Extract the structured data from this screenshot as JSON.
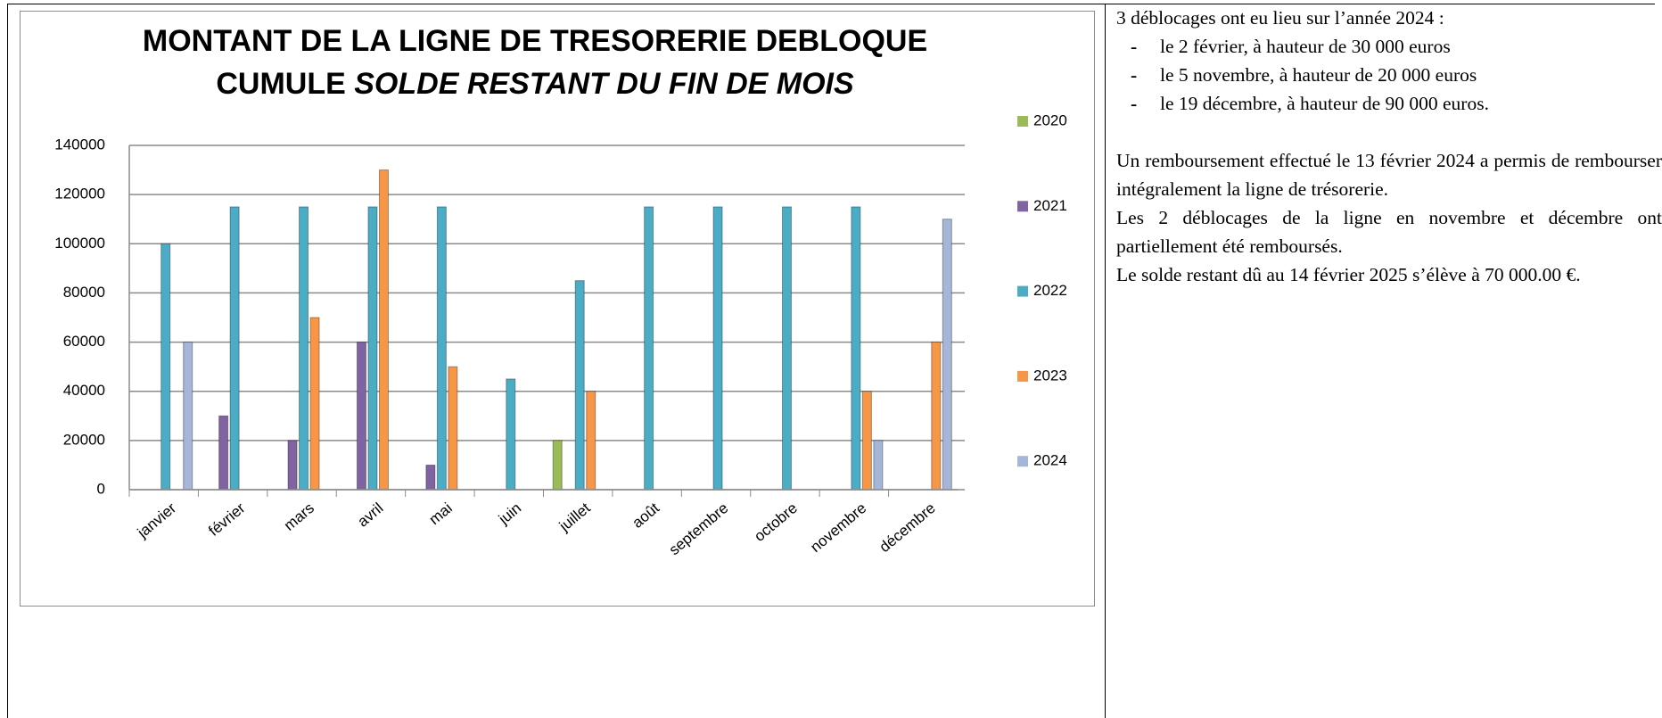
{
  "chart_data": {
    "type": "bar",
    "title": "MONTANT DE LA LIGNE DE TRESORERIE DEBLOQUE CUMULE",
    "title_italic": "SOLDE RESTANT DU FIN DE MOIS",
    "categories": [
      "janvier",
      "février",
      "mars",
      "avril",
      "mai",
      "juin",
      "juillet",
      "août",
      "septembre",
      "octobre",
      "novembre",
      "décembre"
    ],
    "series": [
      {
        "name": "2020",
        "color": "#9bbb59",
        "values": [
          0,
          0,
          0,
          0,
          0,
          0,
          20000,
          0,
          0,
          0,
          0,
          0
        ]
      },
      {
        "name": "2021",
        "color": "#8064a2",
        "values": [
          0,
          30000,
          20000,
          60000,
          10000,
          0,
          0,
          0,
          0,
          0,
          0,
          0
        ]
      },
      {
        "name": "2022",
        "color": "#4bacc6",
        "values": [
          100000,
          115000,
          115000,
          115000,
          115000,
          45000,
          85000,
          115000,
          115000,
          115000,
          115000,
          0
        ]
      },
      {
        "name": "2023",
        "color": "#f79646",
        "values": [
          0,
          0,
          70000,
          130000,
          50000,
          0,
          40000,
          0,
          0,
          0,
          40000,
          60000
        ]
      },
      {
        "name": "2024",
        "color": "#a5b6d9",
        "values": [
          60000,
          0,
          0,
          0,
          0,
          0,
          0,
          0,
          0,
          0,
          20000,
          110000
        ]
      }
    ],
    "ylim": [
      0,
      140000
    ],
    "yticks": [
      0,
      20000,
      40000,
      60000,
      80000,
      100000,
      120000,
      140000
    ],
    "grid": true,
    "legend": "right"
  },
  "text": {
    "intro": "3 déblocages ont eu lieu sur l’année 2024 :",
    "items": [
      "le 2 février, à hauteur de 30 000 euros",
      "le 5 novembre, à hauteur de 20 000 euros",
      "le 19 décembre, à hauteur de 90 000 euros."
    ],
    "paragraphs": [
      "Un remboursement effectué le 13 février 2024 a permis de rembourser intégralement la ligne de trésorerie.",
      "Les 2 déblocages de la ligne en novembre et décembre ont partiellement été remboursés.",
      "Le solde restant dû au 14 février 2025 s’élève à 70 000.00 €."
    ]
  }
}
